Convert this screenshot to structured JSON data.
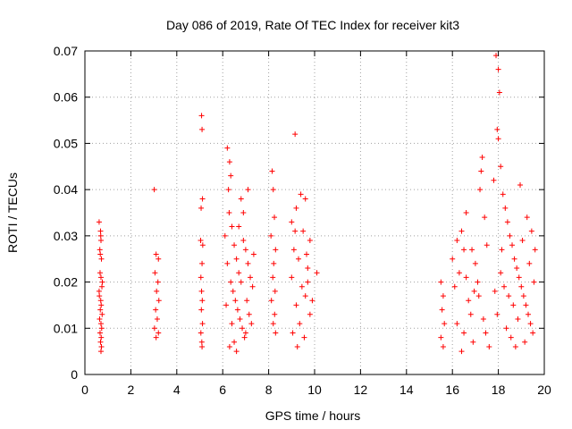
{
  "chart_data": {
    "type": "scatter",
    "title": "Day 086 of 2019, Rate Of TEC Index for receiver kit3",
    "xlabel": "GPS time / hours",
    "ylabel": "ROTI / TECUs",
    "xlim": [
      0,
      20
    ],
    "ylim": [
      0,
      0.07
    ],
    "xticks": [
      "0",
      "2",
      "4",
      "6",
      "8",
      "10",
      "12",
      "14",
      "16",
      "18",
      "20"
    ],
    "yticks": [
      "0",
      "0.01",
      "0.02",
      "0.03",
      "0.04",
      "0.05",
      "0.06",
      "0.07"
    ],
    "grid": true,
    "marker": "+",
    "color": "#ff0000",
    "series": [
      {
        "name": "ROTI",
        "points": [
          [
            0.62,
            0.033
          ],
          [
            0.68,
            0.031
          ],
          [
            0.7,
            0.029
          ],
          [
            0.65,
            0.027
          ],
          [
            0.72,
            0.025
          ],
          [
            0.66,
            0.022
          ],
          [
            0.7,
            0.021
          ],
          [
            0.74,
            0.019
          ],
          [
            0.63,
            0.017
          ],
          [
            0.69,
            0.016
          ],
          [
            0.71,
            0.015
          ],
          [
            0.67,
            0.014
          ],
          [
            0.75,
            0.013
          ],
          [
            0.64,
            0.012
          ],
          [
            0.7,
            0.011
          ],
          [
            0.73,
            0.01
          ],
          [
            0.66,
            0.009
          ],
          [
            0.71,
            0.008
          ],
          [
            0.68,
            0.007
          ],
          [
            0.72,
            0.006
          ],
          [
            0.7,
            0.005
          ],
          [
            0.62,
            0.018
          ],
          [
            0.76,
            0.02
          ],
          [
            0.69,
            0.03
          ],
          [
            0.67,
            0.026
          ],
          [
            3.02,
            0.04
          ],
          [
            3.1,
            0.026
          ],
          [
            3.2,
            0.025
          ],
          [
            3.05,
            0.022
          ],
          [
            3.18,
            0.02
          ],
          [
            3.12,
            0.018
          ],
          [
            3.22,
            0.016
          ],
          [
            3.08,
            0.014
          ],
          [
            3.15,
            0.012
          ],
          [
            3.03,
            0.01
          ],
          [
            3.2,
            0.009
          ],
          [
            3.1,
            0.008
          ],
          [
            5.08,
            0.056
          ],
          [
            5.1,
            0.053
          ],
          [
            5.12,
            0.038
          ],
          [
            5.06,
            0.036
          ],
          [
            5.04,
            0.029
          ],
          [
            5.13,
            0.028
          ],
          [
            5.1,
            0.024
          ],
          [
            5.05,
            0.021
          ],
          [
            5.08,
            0.018
          ],
          [
            5.11,
            0.016
          ],
          [
            5.07,
            0.014
          ],
          [
            5.12,
            0.011
          ],
          [
            5.05,
            0.009
          ],
          [
            5.09,
            0.007
          ],
          [
            5.1,
            0.006
          ],
          [
            6.2,
            0.049
          ],
          [
            6.3,
            0.046
          ],
          [
            6.35,
            0.043
          ],
          [
            6.25,
            0.04
          ],
          [
            6.28,
            0.035
          ],
          [
            6.4,
            0.032
          ],
          [
            6.1,
            0.03
          ],
          [
            6.5,
            0.028
          ],
          [
            6.6,
            0.025
          ],
          [
            6.7,
            0.022
          ],
          [
            6.8,
            0.02
          ],
          [
            6.45,
            0.018
          ],
          [
            6.55,
            0.016
          ],
          [
            6.65,
            0.014
          ],
          [
            6.75,
            0.012
          ],
          [
            6.85,
            0.01
          ],
          [
            6.95,
            0.008
          ],
          [
            6.3,
            0.006
          ],
          [
            6.6,
            0.005
          ],
          [
            7.0,
            0.027
          ],
          [
            7.1,
            0.024
          ],
          [
            7.2,
            0.021
          ],
          [
            7.3,
            0.019
          ],
          [
            7.05,
            0.016
          ],
          [
            7.15,
            0.013
          ],
          [
            7.25,
            0.011
          ],
          [
            6.9,
            0.035
          ],
          [
            7.1,
            0.04
          ],
          [
            6.8,
            0.038
          ],
          [
            6.7,
            0.032
          ],
          [
            6.2,
            0.024
          ],
          [
            6.35,
            0.02
          ],
          [
            6.15,
            0.015
          ],
          [
            6.9,
            0.029
          ],
          [
            7.35,
            0.026
          ],
          [
            7.0,
            0.009
          ],
          [
            6.4,
            0.011
          ],
          [
            6.5,
            0.007
          ],
          [
            8.15,
            0.044
          ],
          [
            8.2,
            0.04
          ],
          [
            8.25,
            0.034
          ],
          [
            8.1,
            0.03
          ],
          [
            8.3,
            0.027
          ],
          [
            8.22,
            0.024
          ],
          [
            8.18,
            0.021
          ],
          [
            8.28,
            0.018
          ],
          [
            8.12,
            0.016
          ],
          [
            8.26,
            0.013
          ],
          [
            8.2,
            0.011
          ],
          [
            8.3,
            0.009
          ],
          [
            9.15,
            0.052
          ],
          [
            9.4,
            0.039
          ],
          [
            9.6,
            0.038
          ],
          [
            9.2,
            0.036
          ],
          [
            9.0,
            0.033
          ],
          [
            9.5,
            0.031
          ],
          [
            9.8,
            0.029
          ],
          [
            9.1,
            0.027
          ],
          [
            9.3,
            0.025
          ],
          [
            9.7,
            0.023
          ],
          [
            9.0,
            0.021
          ],
          [
            9.45,
            0.019
          ],
          [
            9.6,
            0.017
          ],
          [
            9.2,
            0.015
          ],
          [
            9.8,
            0.013
          ],
          [
            9.35,
            0.011
          ],
          [
            9.05,
            0.009
          ],
          [
            9.55,
            0.008
          ],
          [
            9.25,
            0.006
          ],
          [
            9.7,
            0.02
          ],
          [
            10.1,
            0.022
          ],
          [
            9.9,
            0.016
          ],
          [
            9.15,
            0.031
          ],
          [
            9.65,
            0.026
          ],
          [
            15.5,
            0.02
          ],
          [
            15.6,
            0.017
          ],
          [
            15.55,
            0.014
          ],
          [
            15.65,
            0.011
          ],
          [
            15.5,
            0.008
          ],
          [
            15.6,
            0.006
          ],
          [
            16.0,
            0.025
          ],
          [
            16.2,
            0.029
          ],
          [
            16.4,
            0.031
          ],
          [
            16.5,
            0.027
          ],
          [
            16.6,
            0.035
          ],
          [
            16.3,
            0.022
          ],
          [
            16.1,
            0.019
          ],
          [
            16.7,
            0.016
          ],
          [
            16.8,
            0.013
          ],
          [
            16.2,
            0.011
          ],
          [
            16.5,
            0.009
          ],
          [
            16.9,
            0.007
          ],
          [
            16.4,
            0.005
          ],
          [
            17.0,
            0.024
          ],
          [
            17.1,
            0.02
          ],
          [
            17.2,
            0.04
          ],
          [
            17.3,
            0.047
          ],
          [
            17.25,
            0.044
          ],
          [
            17.4,
            0.034
          ],
          [
            17.5,
            0.028
          ],
          [
            17.15,
            0.017
          ],
          [
            17.35,
            0.012
          ],
          [
            17.45,
            0.009
          ],
          [
            17.6,
            0.006
          ],
          [
            16.6,
            0.021
          ],
          [
            16.85,
            0.027
          ],
          [
            16.95,
            0.018
          ],
          [
            17.9,
            0.069
          ],
          [
            18.0,
            0.066
          ],
          [
            18.05,
            0.061
          ],
          [
            17.95,
            0.053
          ],
          [
            18.0,
            0.051
          ],
          [
            18.1,
            0.045
          ],
          [
            17.8,
            0.042
          ],
          [
            18.2,
            0.039
          ],
          [
            18.3,
            0.036
          ],
          [
            18.4,
            0.033
          ],
          [
            18.5,
            0.03
          ],
          [
            18.6,
            0.028
          ],
          [
            18.7,
            0.025
          ],
          [
            18.8,
            0.023
          ],
          [
            18.9,
            0.021
          ],
          [
            19.0,
            0.019
          ],
          [
            19.1,
            0.017
          ],
          [
            19.2,
            0.015
          ],
          [
            19.3,
            0.013
          ],
          [
            19.4,
            0.011
          ],
          [
            19.5,
            0.009
          ],
          [
            18.1,
            0.022
          ],
          [
            18.25,
            0.019
          ],
          [
            18.45,
            0.017
          ],
          [
            18.65,
            0.015
          ],
          [
            18.85,
            0.012
          ],
          [
            18.35,
            0.01
          ],
          [
            18.55,
            0.008
          ],
          [
            18.75,
            0.006
          ],
          [
            19.05,
            0.029
          ],
          [
            19.25,
            0.034
          ],
          [
            19.45,
            0.031
          ],
          [
            19.6,
            0.027
          ],
          [
            19.35,
            0.024
          ],
          [
            18.95,
            0.041
          ],
          [
            18.15,
            0.027
          ],
          [
            17.85,
            0.018
          ],
          [
            17.95,
            0.013
          ],
          [
            19.15,
            0.007
          ],
          [
            19.55,
            0.02
          ]
        ]
      }
    ]
  }
}
